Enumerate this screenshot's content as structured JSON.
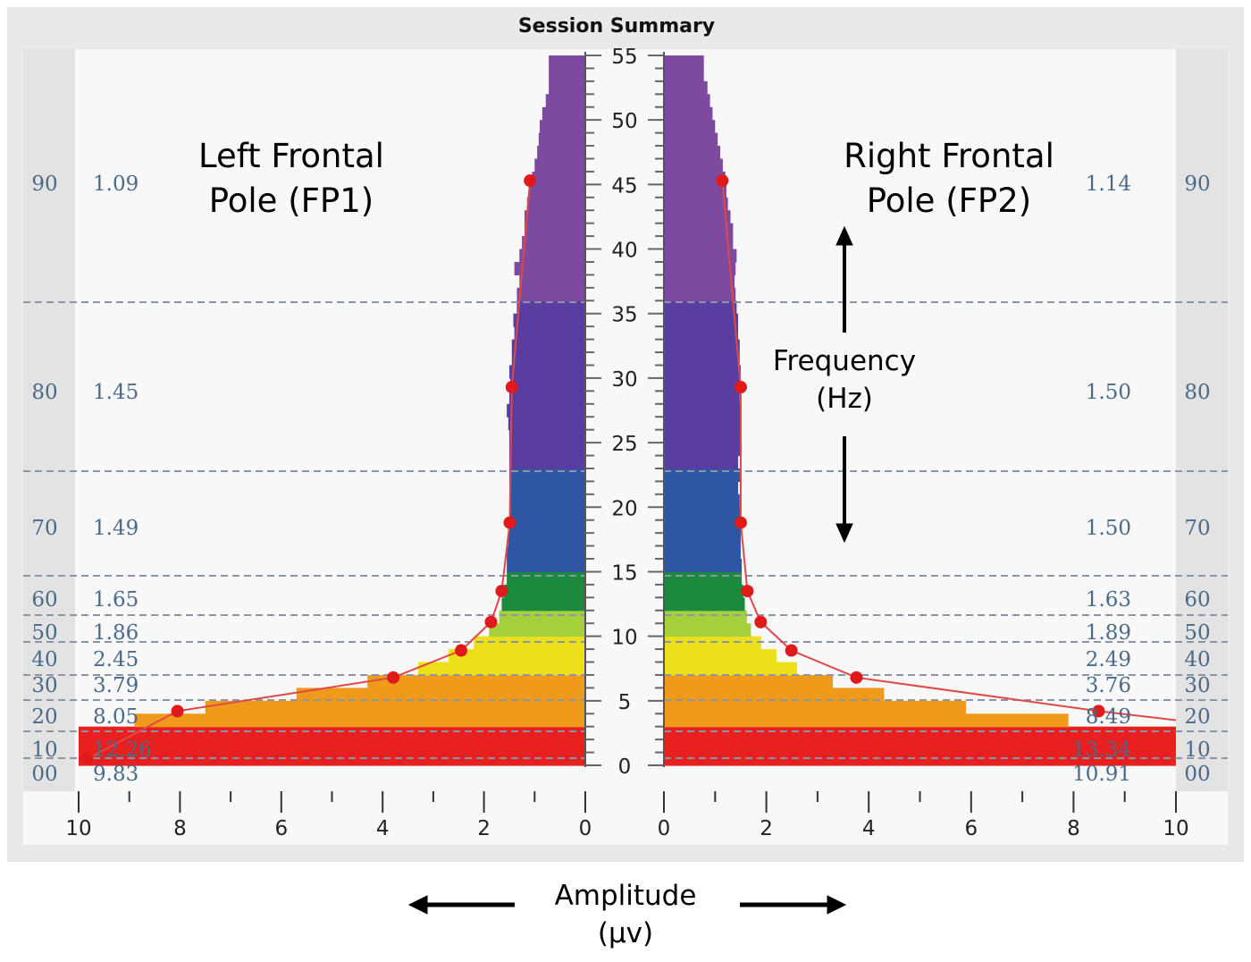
{
  "chart_data": {
    "type": "bar",
    "title": "Session Summary",
    "panels": [
      {
        "name": "Left Frontal Pole (FP1)",
        "label_lines": [
          "Left Frontal",
          "Pole (FP1)"
        ],
        "side": "left"
      },
      {
        "name": "Right Frontal Pole (FP2)",
        "label_lines": [
          "Right Frontal",
          "Pole (FP2)"
        ],
        "side": "right"
      }
    ],
    "ylabel_lines": [
      "Frequency",
      "(Hz)"
    ],
    "xlabel_lines": [
      "Amplitude",
      "(μv)"
    ],
    "x_axis": {
      "range": [
        0,
        10
      ],
      "ticks": [
        10,
        8,
        6,
        4,
        2,
        0
      ],
      "right_ticks": [
        0,
        2,
        4,
        6,
        8,
        10
      ]
    },
    "y_axis": {
      "range": [
        0,
        55
      ],
      "ticks": [
        0,
        5,
        10,
        15,
        20,
        25,
        30,
        35,
        40,
        45,
        50,
        55
      ]
    },
    "bands": [
      {
        "from": 0.5,
        "to": 3,
        "color": "#e82020"
      },
      {
        "from": 3,
        "to": 7,
        "color": "#f09a1c"
      },
      {
        "from": 7,
        "to": 10,
        "color": "#ece01a"
      },
      {
        "from": 10,
        "to": 12,
        "color": "#a6cf3c"
      },
      {
        "from": 12,
        "to": 15,
        "color": "#1c8a3c"
      },
      {
        "from": 15,
        "to": 23,
        "color": "#2f56a5"
      },
      {
        "from": 23,
        "to": 36,
        "color": "#5a3da0"
      },
      {
        "from": 36,
        "to": 55,
        "color": "#7d4aa0"
      }
    ],
    "percentile_rows": [
      {
        "pct": "90",
        "left": "1.09",
        "right": "1.14"
      },
      {
        "pct": "80",
        "left": "1.45",
        "right": "1.50"
      },
      {
        "pct": "70",
        "left": "1.49",
        "right": "1.50"
      },
      {
        "pct": "60",
        "left": "1.65",
        "right": "1.63"
      },
      {
        "pct": "50",
        "left": "1.86",
        "right": "1.89"
      },
      {
        "pct": "40",
        "left": "2.45",
        "right": "2.49"
      },
      {
        "pct": "30",
        "left": "3.79",
        "right": "3.76"
      },
      {
        "pct": "20",
        "left": "8.05",
        "right": "8.49"
      },
      {
        "pct": "10",
        "left": "12.26",
        "right": "13.34"
      },
      {
        "pct": "00",
        "left": "9.83",
        "right": "10.91"
      }
    ],
    "series": [
      {
        "name": "FP1",
        "spectrum": [
          [
            1,
            10
          ],
          [
            2,
            10
          ],
          [
            3,
            10
          ],
          [
            4,
            8.9
          ],
          [
            5,
            7.5
          ],
          [
            6,
            5.7
          ],
          [
            7,
            4.3
          ],
          [
            8,
            3.3
          ],
          [
            9,
            2.7
          ],
          [
            10,
            2.2
          ],
          [
            11,
            1.9
          ],
          [
            12,
            1.7
          ],
          [
            13,
            1.65
          ],
          [
            14,
            1.6
          ],
          [
            15,
            1.55
          ],
          [
            16,
            1.55
          ],
          [
            17,
            1.55
          ],
          [
            18,
            1.52
          ],
          [
            19,
            1.5
          ],
          [
            20,
            1.5
          ],
          [
            21,
            1.5
          ],
          [
            22,
            1.5
          ],
          [
            23,
            1.5
          ],
          [
            24,
            1.5
          ],
          [
            25,
            1.5
          ],
          [
            26,
            1.5
          ],
          [
            27,
            1.52
          ],
          [
            28,
            1.55
          ],
          [
            29,
            1.5
          ],
          [
            30,
            1.48
          ],
          [
            31,
            1.5
          ],
          [
            32,
            1.45
          ],
          [
            33,
            1.45
          ],
          [
            34,
            1.4
          ],
          [
            35,
            1.42
          ],
          [
            36,
            1.35
          ],
          [
            37,
            1.35
          ],
          [
            38,
            1.3
          ],
          [
            39,
            1.4
          ],
          [
            40,
            1.3
          ],
          [
            41,
            1.25
          ],
          [
            42,
            1.2
          ],
          [
            43,
            1.2
          ],
          [
            44,
            1.15
          ],
          [
            45,
            1.1
          ],
          [
            46,
            1.05
          ],
          [
            47,
            1.0
          ],
          [
            48,
            0.95
          ],
          [
            49,
            0.92
          ],
          [
            50,
            0.9
          ],
          [
            51,
            0.85
          ],
          [
            52,
            0.78
          ],
          [
            53,
            0.72
          ],
          [
            54,
            0.72
          ],
          [
            55,
            0.72
          ]
        ],
        "points": [
          [
            9.83,
            0.5
          ],
          [
            8.05,
            4.2
          ],
          [
            3.79,
            6.8
          ],
          [
            2.45,
            8.9
          ],
          [
            1.86,
            11.1
          ],
          [
            1.65,
            13.5
          ],
          [
            1.49,
            18.8
          ],
          [
            1.45,
            29.3
          ],
          [
            1.09,
            45.3
          ]
        ]
      },
      {
        "name": "FP2",
        "spectrum": [
          [
            1,
            10
          ],
          [
            2,
            10
          ],
          [
            3,
            10
          ],
          [
            4,
            7.9
          ],
          [
            5,
            5.9
          ],
          [
            6,
            4.3
          ],
          [
            7,
            3.3
          ],
          [
            8,
            2.6
          ],
          [
            9,
            2.2
          ],
          [
            10,
            1.9
          ],
          [
            11,
            1.7
          ],
          [
            12,
            1.62
          ],
          [
            13,
            1.58
          ],
          [
            14,
            1.55
          ],
          [
            15,
            1.52
          ],
          [
            16,
            1.52
          ],
          [
            17,
            1.5
          ],
          [
            18,
            1.5
          ],
          [
            19,
            1.5
          ],
          [
            20,
            1.5
          ],
          [
            21,
            1.48
          ],
          [
            22,
            1.45
          ],
          [
            23,
            1.5
          ],
          [
            24,
            1.45
          ],
          [
            25,
            1.52
          ],
          [
            26,
            1.5
          ],
          [
            27,
            1.5
          ],
          [
            28,
            1.5
          ],
          [
            29,
            1.48
          ],
          [
            30,
            1.5
          ],
          [
            31,
            1.5
          ],
          [
            32,
            1.48
          ],
          [
            33,
            1.48
          ],
          [
            34,
            1.45
          ],
          [
            35,
            1.45
          ],
          [
            36,
            1.42
          ],
          [
            37,
            1.4
          ],
          [
            38,
            1.38
          ],
          [
            39,
            1.4
          ],
          [
            40,
            1.42
          ],
          [
            41,
            1.35
          ],
          [
            42,
            1.35
          ],
          [
            43,
            1.3
          ],
          [
            44,
            1.25
          ],
          [
            45,
            1.22
          ],
          [
            46,
            1.2
          ],
          [
            47,
            1.15
          ],
          [
            48,
            1.1
          ],
          [
            49,
            1.05
          ],
          [
            50,
            1.0
          ],
          [
            51,
            0.95
          ],
          [
            52,
            0.9
          ],
          [
            53,
            0.85
          ],
          [
            54,
            0.78
          ],
          [
            55,
            0.78
          ]
        ],
        "points": [
          [
            8.49,
            4.2
          ],
          [
            3.76,
            6.8
          ],
          [
            2.49,
            8.9
          ],
          [
            1.89,
            11.1
          ],
          [
            1.63,
            13.5
          ],
          [
            1.5,
            18.8
          ],
          [
            1.5,
            29.3
          ],
          [
            1.14,
            45.3
          ]
        ]
      }
    ],
    "grid": "dashed horizontal",
    "colors": {
      "marker": "#e01a1a",
      "line": "#e04848",
      "value_text": "#4a6a8a",
      "grid": "#8a96a8"
    }
  }
}
